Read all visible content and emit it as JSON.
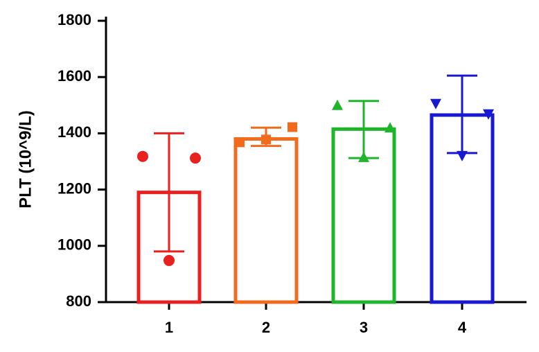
{
  "chart_data": {
    "type": "bar",
    "ylabel": "PLT (10^9/L)",
    "xlabel": "",
    "ylim": [
      800,
      1800
    ],
    "yticks": [
      800,
      1000,
      1200,
      1400,
      1600,
      1800
    ],
    "grid": false,
    "legend": "none",
    "categories": [
      "1",
      "2",
      "3",
      "4"
    ],
    "series": [
      {
        "values": [
          1190,
          1380,
          1415,
          1465
        ],
        "error_upper": [
          1400,
          1420,
          1515,
          1605
        ],
        "error_lower": [
          980,
          1355,
          1312,
          1330
        ],
        "colors": [
          "#e8201f",
          "#f26b1d",
          "#1fb52b",
          "#1919d2"
        ],
        "markers": [
          "circle",
          "square",
          "triangle-up",
          "triangle-down"
        ],
        "points": [
          [
            1318,
            1312,
            948
          ],
          [
            1368,
            1422,
            1378
          ],
          [
            1500,
            1420,
            1315
          ],
          [
            1505,
            1468,
            1320
          ]
        ]
      }
    ]
  }
}
